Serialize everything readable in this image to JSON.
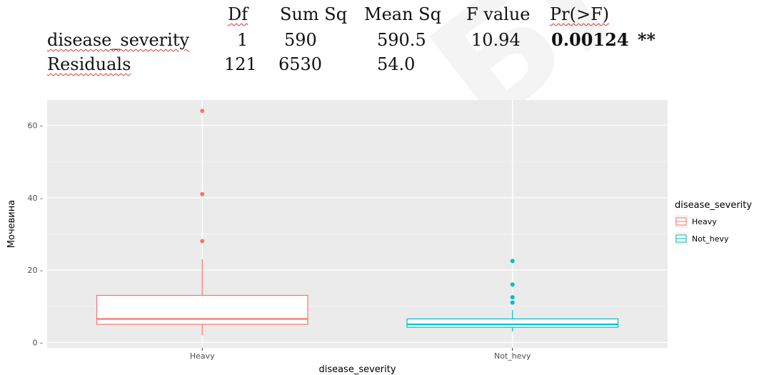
{
  "anova_table": {
    "headers": [
      "Df",
      "Sum Sq",
      "Mean Sq",
      "F value",
      "Pr(>F)"
    ],
    "rows": [
      {
        "term": "disease_severity",
        "df": "1",
        "sum_sq": "590",
        "mean_sq": "590.5",
        "f_value": "10.94",
        "p_value": "0.00124",
        "signif": "**"
      },
      {
        "term": "Residuals",
        "df": "121",
        "sum_sq": "6530",
        "mean_sq": "54.0",
        "f_value": "",
        "p_value": "",
        "signif": ""
      }
    ]
  },
  "watermark": "БГМУ",
  "chart_data": {
    "type": "boxplot",
    "title": "",
    "xlabel": "disease_severity",
    "ylabel": "Мочевина",
    "ylim": [
      -1.5,
      67
    ],
    "y_ticks": [
      0,
      20,
      40,
      60
    ],
    "y_tick_labels": [
      "0 -",
      "20 -",
      "40 -",
      "60 -"
    ],
    "categories": [
      "Heavy",
      "Not_hevy"
    ],
    "grid": true,
    "legend": {
      "title": "disease_severity",
      "position": "right",
      "entries": [
        "Heavy",
        "Not_hevy"
      ]
    },
    "colors": {
      "Heavy": "#F8766D",
      "Not_hevy": "#00BFC4",
      "panel": "#EBEBEB",
      "grid": "#FFFFFF"
    },
    "series": [
      {
        "name": "Heavy",
        "whisker_low": 2,
        "q1": 5,
        "median": 6.5,
        "q3": 13,
        "whisker_high": 23,
        "outliers": [
          28,
          41,
          64
        ]
      },
      {
        "name": "Not_hevy",
        "whisker_low": 3,
        "q1": 4.2,
        "median": 5,
        "q3": 6.5,
        "whisker_high": 9,
        "outliers": [
          11,
          12.5,
          16,
          22.5
        ]
      }
    ]
  }
}
